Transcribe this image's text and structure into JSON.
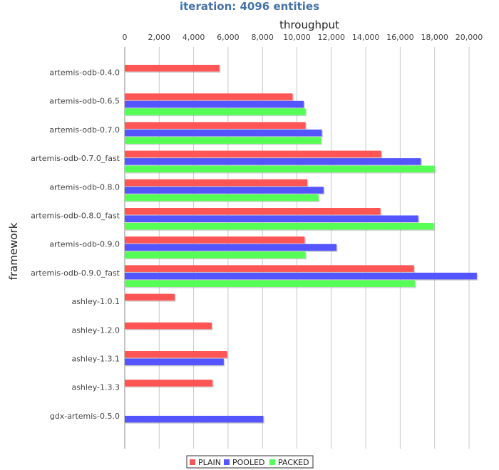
{
  "chart_data": {
    "type": "bar",
    "orientation": "horizontal",
    "title": "iteration: 4096 entities",
    "xlabel": "throughput",
    "ylabel": "framework",
    "xlim": [
      0,
      21000
    ],
    "xticks": [
      "0",
      "2,000",
      "4,000",
      "6,000",
      "8,000",
      "10,000",
      "12,000",
      "14,000",
      "16,000",
      "18,000",
      "20,000"
    ],
    "grid": true,
    "legend_position": "bottom",
    "categories": [
      "artemis-odb-0.4.0",
      "artemis-odb-0.6.5",
      "artemis-odb-0.7.0",
      "artemis-odb-0.7.0_fast",
      "artemis-odb-0.8.0",
      "artemis-odb-0.8.0_fast",
      "artemis-odb-0.9.0",
      "artemis-odb-0.9.0_fast",
      "ashley-1.0.1",
      "ashley-1.2.0",
      "ashley-1.3.1",
      "ashley-1.3.3",
      "gdx-artemis-0.5.0"
    ],
    "series": [
      {
        "name": "PLAIN",
        "color": "#ff5555",
        "values": [
          5500,
          9750,
          10500,
          14900,
          10600,
          14850,
          10450,
          16800,
          2900,
          5050,
          5950,
          5100,
          null
        ]
      },
      {
        "name": "POOLED",
        "color": "#5555ff",
        "values": [
          null,
          10400,
          11450,
          17200,
          11550,
          17050,
          12300,
          20450,
          null,
          null,
          5750,
          null,
          8050
        ]
      },
      {
        "name": "PACKED",
        "color": "#55ff55",
        "values": [
          null,
          10500,
          11400,
          18000,
          11250,
          17950,
          10500,
          16850,
          null,
          null,
          null,
          null,
          null
        ]
      }
    ]
  }
}
